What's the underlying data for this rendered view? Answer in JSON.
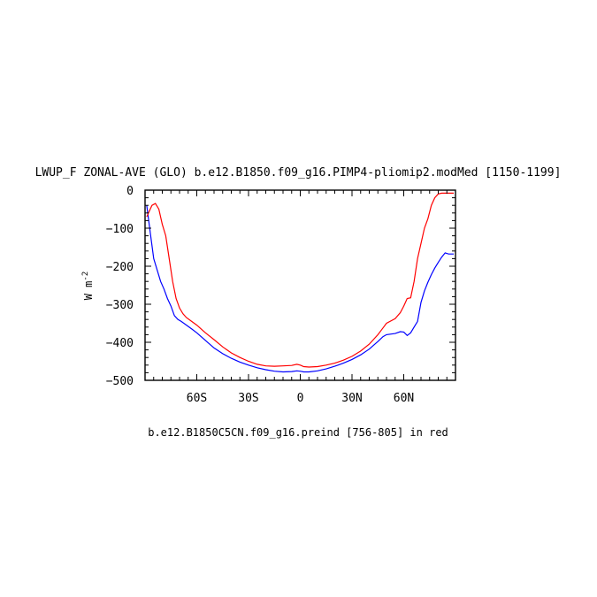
{
  "chart_data": {
    "type": "line",
    "title": "LWUP_F ZONAL-AVE (GLO) b.e12.B1850.f09_g16.PIMP4-pliomip2.modMed [1150-1199]",
    "ylabel": "W m",
    "ylabel_superscript": "-2",
    "caption": "b.e12.B1850C5CN.f09_g16.preind [756-805] in red",
    "xlim": [
      -90,
      90
    ],
    "ylim": [
      -500,
      0
    ],
    "x_ticks": [
      {
        "value": -60,
        "label": "60S"
      },
      {
        "value": -30,
        "label": "30S"
      },
      {
        "value": 0,
        "label": "0"
      },
      {
        "value": 30,
        "label": "30N"
      },
      {
        "value": 60,
        "label": "60N"
      }
    ],
    "y_ticks": [
      {
        "value": 0,
        "label": "0"
      },
      {
        "value": -100,
        "label": "−100"
      },
      {
        "value": -200,
        "label": "−200"
      },
      {
        "value": -300,
        "label": "−300"
      },
      {
        "value": -400,
        "label": "−400"
      },
      {
        "value": -500,
        "label": "−500"
      }
    ],
    "series": [
      {
        "color": "#0000ff",
        "x": [
          -89,
          -87,
          -85,
          -83,
          -81,
          -79,
          -77,
          -75,
          -73,
          -71,
          -69,
          -66,
          -63,
          -60,
          -55,
          -50,
          -45,
          -40,
          -35,
          -30,
          -25,
          -20,
          -15,
          -10,
          -5,
          -2,
          0,
          2,
          5,
          10,
          15,
          20,
          25,
          30,
          35,
          40,
          45,
          48,
          50,
          55,
          58,
          60,
          62,
          64,
          66,
          68,
          70,
          72,
          74,
          76,
          78,
          80,
          82,
          84,
          86,
          88,
          89
        ],
        "y": [
          -40,
          -110,
          -180,
          -210,
          -240,
          -260,
          -285,
          -305,
          -330,
          -340,
          -345,
          -355,
          -365,
          -375,
          -395,
          -415,
          -430,
          -442,
          -452,
          -460,
          -467,
          -472,
          -476,
          -478,
          -477,
          -475,
          -476,
          -478,
          -478,
          -475,
          -470,
          -463,
          -455,
          -445,
          -433,
          -418,
          -398,
          -385,
          -380,
          -377,
          -372,
          -373,
          -382,
          -375,
          -360,
          -345,
          -295,
          -265,
          -242,
          -222,
          -205,
          -190,
          -176,
          -165,
          -168,
          -168,
          -168
        ]
      },
      {
        "color": "#ff0000",
        "x": [
          -89,
          -88,
          -86,
          -84,
          -82,
          -80,
          -78,
          -76,
          -74,
          -72,
          -70,
          -68,
          -66,
          -63,
          -60,
          -55,
          -50,
          -45,
          -40,
          -35,
          -30,
          -25,
          -20,
          -15,
          -10,
          -5,
          -2,
          0,
          2,
          5,
          10,
          15,
          20,
          25,
          30,
          35,
          40,
          45,
          48,
          50,
          55,
          58,
          60,
          62,
          64,
          66,
          68,
          70,
          72,
          74,
          76,
          78,
          80,
          82,
          84,
          86,
          88,
          89
        ],
        "y": [
          -70,
          -60,
          -40,
          -35,
          -50,
          -90,
          -120,
          -180,
          -240,
          -285,
          -310,
          -325,
          -335,
          -345,
          -355,
          -375,
          -393,
          -412,
          -428,
          -440,
          -450,
          -458,
          -462,
          -463,
          -462,
          -461,
          -458,
          -460,
          -464,
          -465,
          -464,
          -460,
          -455,
          -447,
          -437,
          -423,
          -405,
          -380,
          -362,
          -350,
          -338,
          -322,
          -305,
          -285,
          -283,
          -240,
          -180,
          -140,
          -100,
          -75,
          -40,
          -20,
          -10,
          -8,
          -8,
          -8,
          -8,
          -8
        ]
      }
    ]
  }
}
